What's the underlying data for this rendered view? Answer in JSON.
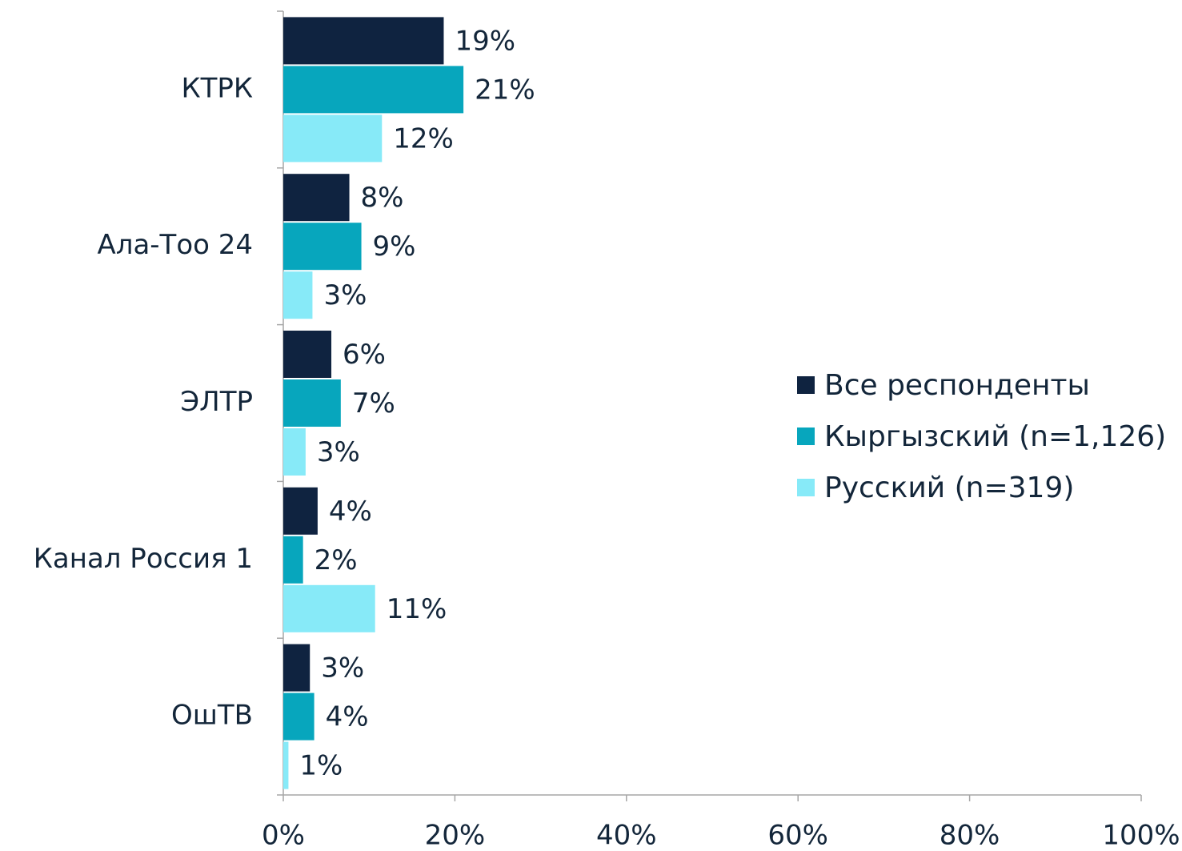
{
  "chart_data": {
    "type": "hbar",
    "categories": [
      "КТРК",
      "Ала-Тоо 24",
      "ЭЛТР",
      "Канал Россия 1",
      "ОшТВ"
    ],
    "series": [
      {
        "name": "Все респонденты",
        "color": "#0f2340",
        "values": [
          18.7,
          7.7,
          5.6,
          4.0,
          3.1
        ],
        "value_labels": [
          "19%",
          "8%",
          "6%",
          "4%",
          "3%"
        ]
      },
      {
        "name": "Кыргызский (n=1,126)",
        "color": "#07a6bd",
        "values": [
          21.0,
          9.1,
          6.7,
          2.3,
          3.6
        ],
        "value_labels": [
          "21%",
          "9%",
          "7%",
          "2%",
          "4%"
        ]
      },
      {
        "name": "Русский (n=319)",
        "color": "#87eaf8",
        "values": [
          11.5,
          3.4,
          2.6,
          10.7,
          0.6
        ],
        "value_labels": [
          "12%",
          "3%",
          "3%",
          "11%",
          "1%"
        ]
      }
    ],
    "xlim": [
      0,
      100
    ],
    "xticks": [
      {
        "value": 0,
        "label": "0%"
      },
      {
        "value": 20,
        "label": "20%"
      },
      {
        "value": 40,
        "label": "40%"
      },
      {
        "value": 60,
        "label": "60%"
      },
      {
        "value": 80,
        "label": "80%"
      },
      {
        "value": 100,
        "label": "100%"
      }
    ],
    "legend": "right"
  }
}
